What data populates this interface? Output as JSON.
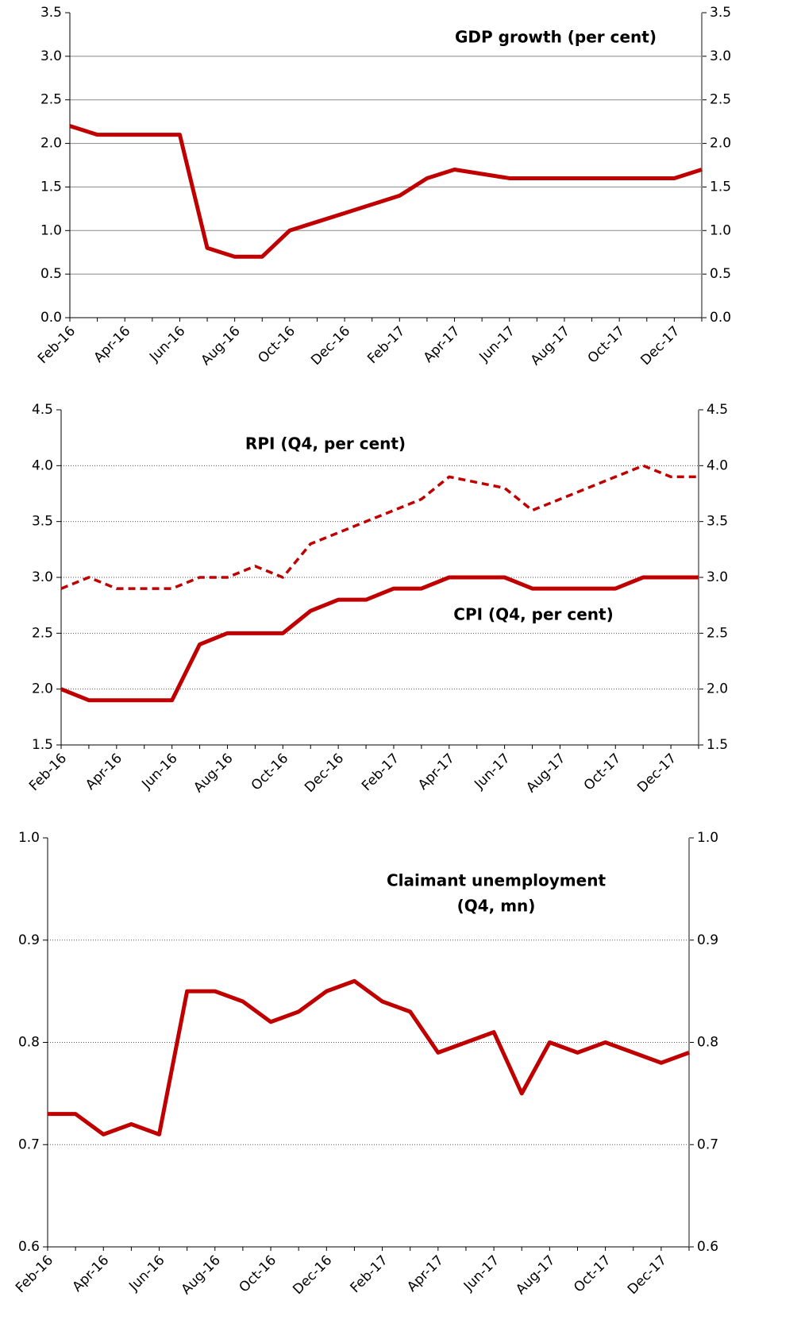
{
  "chart_data": [
    {
      "type": "line",
      "title": "GDP growth (per cent)",
      "categories": [
        "Feb-16",
        null,
        "Apr-16",
        null,
        "Jun-16",
        null,
        "Aug-16",
        null,
        "Oct-16",
        null,
        "Dec-16",
        null,
        "Feb-17",
        null,
        "Apr-17",
        null,
        "Jun-17",
        null,
        "Aug-17",
        null,
        "Oct-17",
        null,
        "Dec-17",
        null
      ],
      "series": [
        {
          "name": "GDP growth",
          "color": "#c00000",
          "line_style": "solid",
          "values": [
            2.2,
            2.1,
            2.1,
            2.1,
            2.1,
            0.8,
            0.7,
            0.7,
            1.0,
            1.1,
            1.2,
            1.3,
            1.4,
            1.6,
            1.7,
            1.65,
            1.6,
            1.6,
            1.6,
            1.6,
            1.6,
            1.6,
            1.6,
            1.7
          ]
        }
      ],
      "ylim": [
        0,
        3.5
      ],
      "yticks": [
        {
          "value": 0,
          "label": "0.0"
        },
        0.5,
        {
          "value": 1,
          "label": "1.0"
        },
        1.5,
        {
          "value": 2,
          "label": "2.0"
        },
        2.5,
        {
          "value": 3,
          "label": "3.0"
        },
        3.5
      ],
      "y2lim": [
        0,
        3.5
      ],
      "y2ticks": [
        {
          "value": 0,
          "label": "0.0"
        },
        0.5,
        {
          "value": 1,
          "label": "1.0"
        },
        1.5,
        {
          "value": 2,
          "label": "2.0"
        },
        2.5,
        {
          "value": 3,
          "label": "3.0"
        },
        3.5
      ],
      "grid": "solid"
    },
    {
      "type": "line",
      "categories": [
        "Feb-16",
        null,
        "Apr-16",
        null,
        "Jun-16",
        null,
        "Aug-16",
        null,
        "Oct-16",
        null,
        "Dec-16",
        null,
        "Feb-17",
        null,
        "Apr-17",
        null,
        "Jun-17",
        null,
        "Aug-17",
        null,
        "Oct-17",
        null,
        "Dec-17",
        null
      ],
      "series": [
        {
          "name": "RPI (Q4, per cent)",
          "color": "#c00000",
          "line_style": "dashed",
          "values": [
            2.9,
            3.0,
            2.9,
            2.9,
            2.9,
            3.0,
            3.0,
            3.1,
            3.0,
            3.3,
            3.4,
            3.5,
            3.6,
            3.7,
            3.9,
            3.85,
            3.8,
            3.6,
            3.7,
            3.8,
            3.9,
            4.0,
            3.9,
            3.9
          ]
        },
        {
          "name": "CPI (Q4, per cent)",
          "color": "#c00000",
          "line_style": "solid",
          "values": [
            2.0,
            1.9,
            1.9,
            1.9,
            1.9,
            2.4,
            2.5,
            2.5,
            2.5,
            2.7,
            2.8,
            2.8,
            2.9,
            2.9,
            3.0,
            3.0,
            3.0,
            2.9,
            2.9,
            2.9,
            2.9,
            3.0,
            3.0,
            3.0
          ]
        }
      ],
      "ylim": [
        1.5,
        4.5
      ],
      "yticks": [
        1.5,
        {
          "value": 2,
          "label": "2.0"
        },
        2.5,
        {
          "value": 3,
          "label": "3.0"
        },
        3.5,
        {
          "value": 4,
          "label": "4.0"
        },
        4.5
      ],
      "y2lim": [
        1.5,
        4.5
      ],
      "y2ticks": [
        1.5,
        {
          "value": 2,
          "label": "2.0"
        },
        2.5,
        {
          "value": 3,
          "label": "3.0"
        },
        3.5,
        {
          "value": 4,
          "label": "4.0"
        },
        4.5
      ],
      "grid": "dotted"
    },
    {
      "type": "line",
      "title": [
        "Claimant unemployment",
        "(Q4, mn)"
      ],
      "categories": [
        "Feb-16",
        null,
        "Apr-16",
        null,
        "Jun-16",
        null,
        "Aug-16",
        null,
        "Oct-16",
        null,
        "Dec-16",
        null,
        "Feb-17",
        null,
        "Apr-17",
        null,
        "Jun-17",
        null,
        "Aug-17",
        null,
        "Oct-17",
        null,
        "Dec-17",
        null
      ],
      "series": [
        {
          "name": "Claimant unemployment",
          "color": "#c00000",
          "line_style": "solid",
          "values": [
            0.73,
            0.73,
            0.71,
            0.72,
            0.71,
            0.85,
            0.85,
            0.84,
            0.82,
            0.83,
            0.85,
            0.86,
            0.84,
            0.83,
            0.79,
            0.8,
            0.81,
            0.75,
            0.8,
            0.79,
            0.8,
            0.79,
            0.78,
            0.79
          ]
        }
      ],
      "ylim": [
        0.6,
        1.0
      ],
      "yticks": [
        0.6,
        0.7,
        0.8,
        0.9,
        {
          "value": 1,
          "label": "1.0"
        }
      ],
      "y2lim": [
        0.6,
        1.0
      ],
      "y2ticks": [
        0.6,
        0.7,
        0.8,
        0.9,
        {
          "value": 1,
          "label": "1.0"
        }
      ],
      "grid": "dotted"
    }
  ]
}
